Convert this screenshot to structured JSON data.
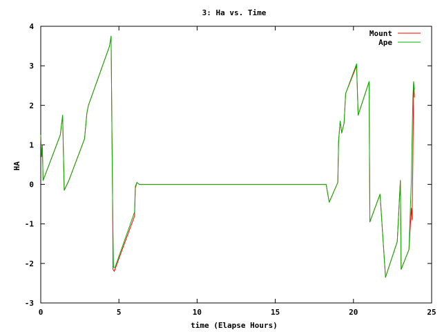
{
  "chart_data": {
    "type": "line",
    "title": "3: Ha vs. Time",
    "xlabel": "time (Elapse Hours)",
    "ylabel": "HA",
    "xlim": [
      0,
      25
    ],
    "ylim": [
      -3,
      4
    ],
    "xticks": [
      0,
      5,
      10,
      15,
      20,
      25
    ],
    "yticks": [
      -3,
      -2,
      -1,
      0,
      1,
      2,
      3,
      4
    ],
    "grid": false,
    "legend_position": "top-right",
    "series": [
      {
        "name": "Mount",
        "color": "#ff0000",
        "points": [
          [
            0.0,
            1.25
          ],
          [
            0.05,
            0.7
          ],
          [
            0.1,
            1.0
          ],
          [
            0.15,
            0.1
          ],
          [
            1.25,
            1.25
          ],
          [
            1.4,
            1.75
          ],
          [
            1.5,
            -0.15
          ],
          [
            1.8,
            0.1
          ],
          [
            2.8,
            1.15
          ],
          [
            2.95,
            1.8
          ],
          [
            3.05,
            2.0
          ],
          [
            4.4,
            3.5
          ],
          [
            4.5,
            3.75
          ],
          [
            4.55,
            1.5
          ],
          [
            4.6,
            -0.6
          ],
          [
            4.62,
            -2.15
          ],
          [
            4.7,
            -2.2
          ],
          [
            6.0,
            -0.8
          ],
          [
            6.05,
            -0.1
          ],
          [
            6.15,
            0.05
          ],
          [
            6.3,
            0.0
          ],
          [
            18.25,
            0.0
          ],
          [
            18.45,
            -0.45
          ],
          [
            19.0,
            0.05
          ],
          [
            19.05,
            1.1
          ],
          [
            19.15,
            1.6
          ],
          [
            19.25,
            1.3
          ],
          [
            19.4,
            1.55
          ],
          [
            19.5,
            2.3
          ],
          [
            20.2,
            3.0
          ],
          [
            20.3,
            1.75
          ],
          [
            21.0,
            2.6
          ],
          [
            21.05,
            -0.95
          ],
          [
            21.7,
            -0.25
          ],
          [
            22.05,
            -2.35
          ],
          [
            22.8,
            -1.45
          ],
          [
            23.0,
            0.1
          ],
          [
            23.05,
            -2.15
          ],
          [
            23.55,
            -1.65
          ],
          [
            23.7,
            -0.6
          ],
          [
            23.75,
            -0.9
          ],
          [
            23.8,
            0.55
          ],
          [
            23.85,
            2.6
          ],
          [
            23.9,
            2.2
          ]
        ]
      },
      {
        "name": "Ape",
        "color": "#00b000",
        "points": [
          [
            0.0,
            1.25
          ],
          [
            0.05,
            0.7
          ],
          [
            0.1,
            1.0
          ],
          [
            0.15,
            0.1
          ],
          [
            1.25,
            1.25
          ],
          [
            1.4,
            1.75
          ],
          [
            1.5,
            -0.15
          ],
          [
            1.8,
            0.1
          ],
          [
            2.8,
            1.15
          ],
          [
            2.95,
            1.8
          ],
          [
            3.05,
            2.0
          ],
          [
            4.4,
            3.5
          ],
          [
            4.5,
            3.75
          ],
          [
            4.55,
            1.45
          ],
          [
            4.6,
            -0.55
          ],
          [
            4.65,
            -2.1
          ],
          [
            4.75,
            -2.1
          ],
          [
            6.0,
            -0.7
          ],
          [
            6.05,
            -0.05
          ],
          [
            6.15,
            0.05
          ],
          [
            6.3,
            0.0
          ],
          [
            18.25,
            0.0
          ],
          [
            18.45,
            -0.45
          ],
          [
            19.0,
            0.05
          ],
          [
            19.05,
            1.1
          ],
          [
            19.15,
            1.6
          ],
          [
            19.25,
            1.3
          ],
          [
            19.4,
            1.55
          ],
          [
            19.5,
            2.3
          ],
          [
            20.2,
            3.05
          ],
          [
            20.3,
            1.75
          ],
          [
            21.0,
            2.6
          ],
          [
            21.05,
            -0.95
          ],
          [
            21.7,
            -0.25
          ],
          [
            22.05,
            -2.35
          ],
          [
            22.8,
            -1.45
          ],
          [
            23.0,
            0.1
          ],
          [
            23.05,
            -2.15
          ],
          [
            23.55,
            -1.65
          ],
          [
            23.7,
            0.1
          ],
          [
            23.8,
            2.2
          ],
          [
            23.85,
            2.6
          ],
          [
            23.9,
            2.4
          ]
        ]
      }
    ]
  }
}
